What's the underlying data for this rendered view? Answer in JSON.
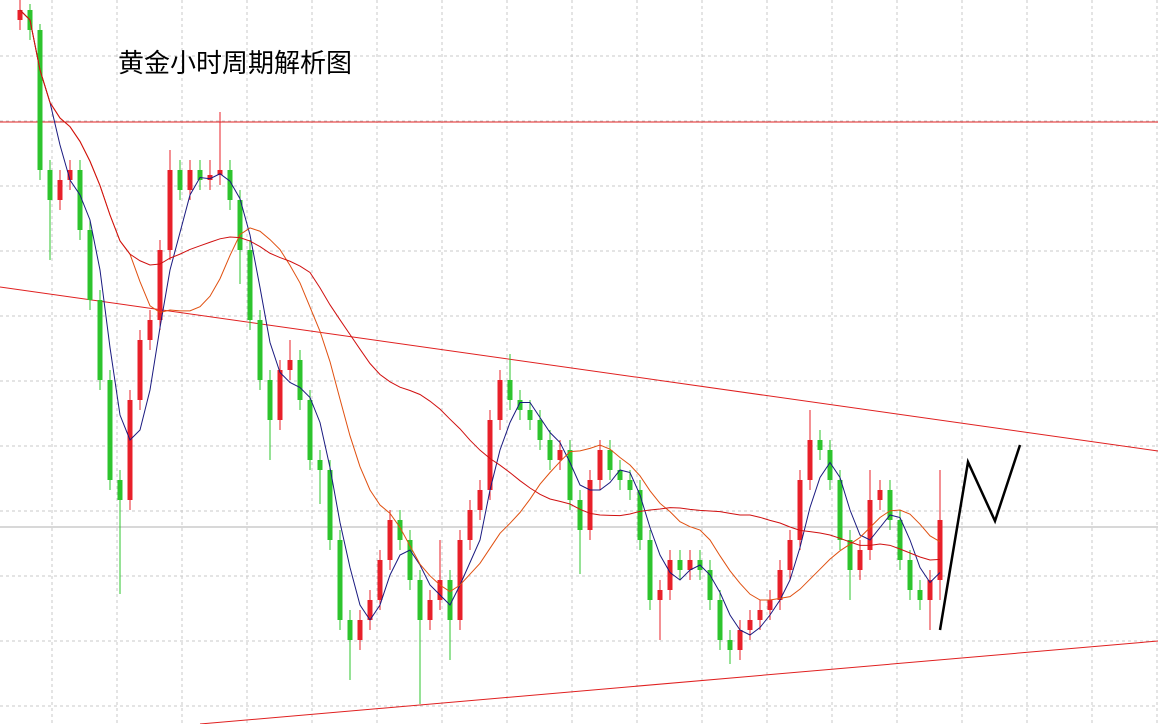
{
  "chart_data": {
    "type": "candlestick",
    "title": "黄金小时周期解析图",
    "up_color": "#e8202a",
    "down_color": "#2ec42e",
    "ylim": [
      0,
      724
    ],
    "values": [
      [
        704,
        724,
        694,
        714
      ],
      [
        714,
        720,
        684,
        694
      ],
      [
        694,
        700,
        544,
        554
      ],
      [
        554,
        564,
        464,
        524
      ],
      [
        524,
        554,
        514,
        544
      ],
      [
        544,
        564,
        534,
        554
      ],
      [
        554,
        564,
        484,
        494
      ],
      [
        494,
        504,
        414,
        424
      ],
      [
        424,
        434,
        334,
        344
      ],
      [
        344,
        354,
        234,
        244
      ],
      [
        244,
        254,
        130,
        224
      ],
      [
        224,
        334,
        214,
        324
      ],
      [
        324,
        394,
        314,
        384
      ],
      [
        384,
        414,
        374,
        404
      ],
      [
        404,
        484,
        394,
        474
      ],
      [
        474,
        574,
        464,
        554
      ],
      [
        554,
        564,
        524,
        534
      ],
      [
        534,
        564,
        524,
        554
      ],
      [
        554,
        564,
        534,
        544
      ],
      [
        544,
        564,
        534,
        549
      ],
      [
        549,
        612,
        539,
        554
      ],
      [
        554,
        564,
        514,
        524
      ],
      [
        524,
        534,
        440,
        474
      ],
      [
        474,
        484,
        394,
        404
      ],
      [
        404,
        414,
        334,
        344
      ],
      [
        344,
        354,
        264,
        304
      ],
      [
        304,
        364,
        294,
        354
      ],
      [
        354,
        384,
        344,
        364
      ],
      [
        364,
        374,
        314,
        324
      ],
      [
        324,
        334,
        254,
        264
      ],
      [
        264,
        274,
        220,
        254
      ],
      [
        254,
        264,
        174,
        184
      ],
      [
        184,
        194,
        94,
        104
      ],
      [
        104,
        114,
        44,
        84
      ],
      [
        84,
        114,
        74,
        104
      ],
      [
        104,
        134,
        94,
        124
      ],
      [
        124,
        174,
        114,
        164
      ],
      [
        164,
        214,
        154,
        204
      ],
      [
        204,
        214,
        174,
        184
      ],
      [
        184,
        194,
        134,
        144
      ],
      [
        144,
        154,
        20,
        104
      ],
      [
        104,
        134,
        94,
        124
      ],
      [
        124,
        184,
        114,
        144
      ],
      [
        144,
        154,
        64,
        104
      ],
      [
        104,
        194,
        94,
        184
      ],
      [
        184,
        224,
        174,
        214
      ],
      [
        214,
        244,
        204,
        234
      ],
      [
        234,
        314,
        224,
        304
      ],
      [
        304,
        354,
        294,
        344
      ],
      [
        344,
        370,
        314,
        324
      ],
      [
        324,
        334,
        304,
        314
      ],
      [
        314,
        324,
        294,
        304
      ],
      [
        304,
        314,
        274,
        284
      ],
      [
        284,
        294,
        254,
        264
      ],
      [
        264,
        284,
        254,
        274
      ],
      [
        274,
        284,
        214,
        224
      ],
      [
        224,
        234,
        150,
        194
      ],
      [
        194,
        254,
        184,
        244
      ],
      [
        244,
        284,
        234,
        274
      ],
      [
        274,
        284,
        244,
        254
      ],
      [
        254,
        264,
        234,
        244
      ],
      [
        244,
        254,
        224,
        234
      ],
      [
        234,
        244,
        174,
        184
      ],
      [
        184,
        194,
        114,
        124
      ],
      [
        124,
        144,
        84,
        134
      ],
      [
        134,
        174,
        124,
        164
      ],
      [
        164,
        174,
        144,
        154
      ],
      [
        154,
        174,
        144,
        164
      ],
      [
        164,
        174,
        144,
        154
      ],
      [
        154,
        164,
        114,
        124
      ],
      [
        124,
        134,
        74,
        84
      ],
      [
        84,
        94,
        60,
        74
      ],
      [
        74,
        104,
        64,
        94
      ],
      [
        94,
        114,
        84,
        104
      ],
      [
        104,
        124,
        94,
        114
      ],
      [
        114,
        134,
        104,
        124
      ],
      [
        124,
        164,
        114,
        154
      ],
      [
        154,
        194,
        144,
        184
      ],
      [
        184,
        254,
        174,
        244
      ],
      [
        244,
        314,
        234,
        284
      ],
      [
        284,
        294,
        264,
        274
      ],
      [
        274,
        284,
        234,
        244
      ],
      [
        244,
        254,
        174,
        184
      ],
      [
        184,
        194,
        124,
        154
      ],
      [
        154,
        184,
        144,
        174
      ],
      [
        174,
        254,
        164,
        224
      ],
      [
        224,
        244,
        214,
        234
      ],
      [
        234,
        244,
        194,
        204
      ],
      [
        204,
        214,
        154,
        164
      ],
      [
        164,
        174,
        124,
        134
      ],
      [
        134,
        144,
        114,
        124
      ],
      [
        124,
        154,
        94,
        144
      ],
      [
        144,
        254,
        124,
        204
      ]
    ]
  }
}
